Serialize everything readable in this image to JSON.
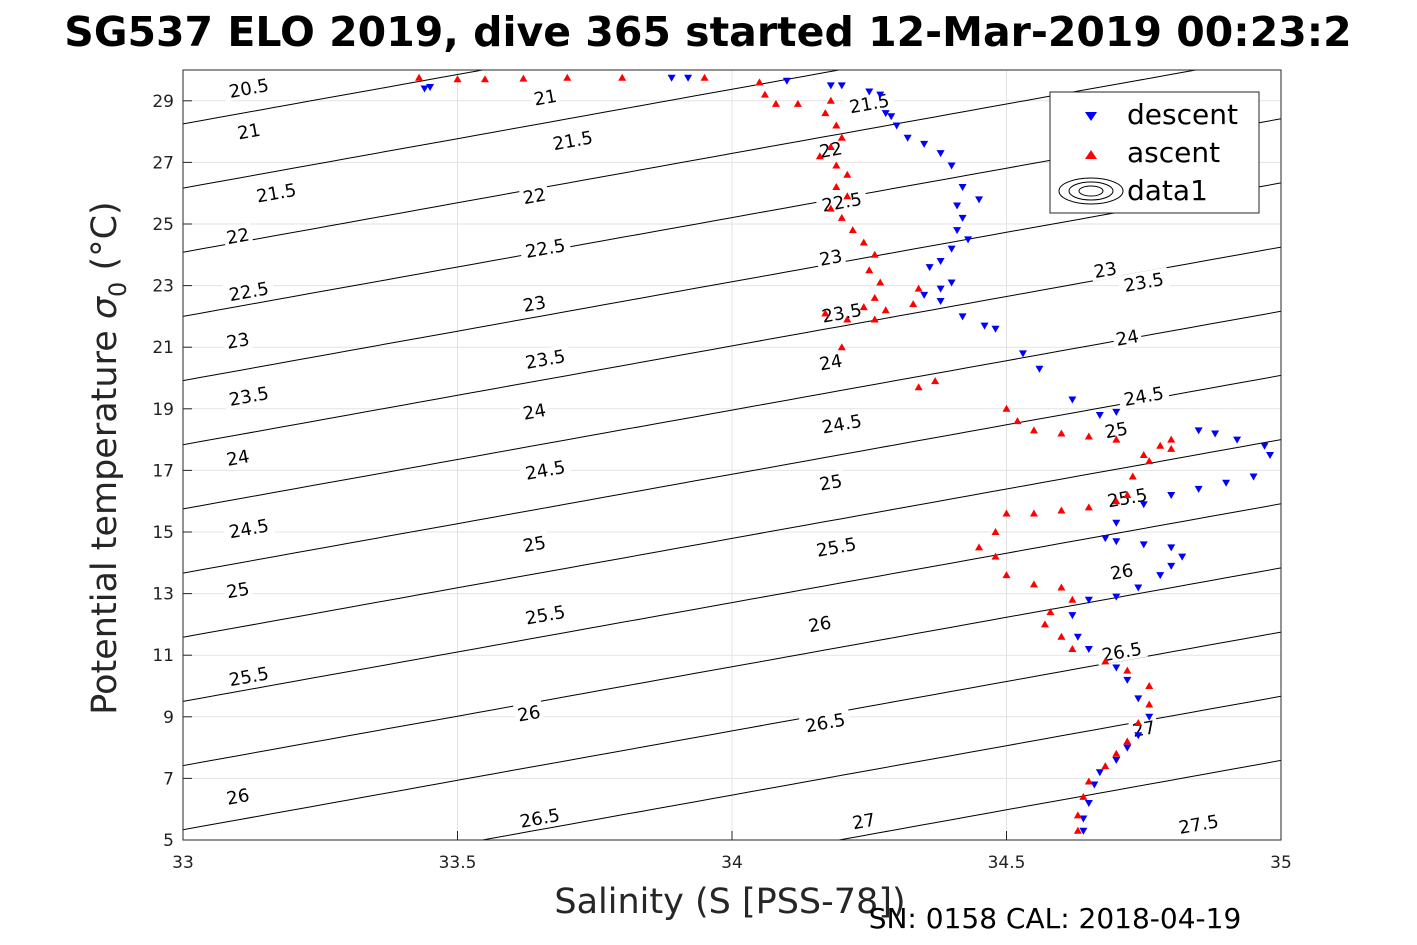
{
  "title": "SG537 ELO 2019, dive 365 started 12-Mar-2019 00:23:2",
  "footer": "SN: 0158  CAL: 2018-04-19",
  "chart_data": {
    "type": "scatter",
    "xlabel": "Salinity (S [PSS-78])",
    "ylabel_main": "Potential temperature ",
    "ylabel_sym": "σ",
    "ylabel_sub": "0",
    "ylabel_unit": " (°C)",
    "xlim": [
      33,
      35
    ],
    "ylim": [
      5,
      30
    ],
    "xticks": [
      33,
      33.5,
      34,
      34.5,
      35
    ],
    "xtick_labels": [
      "33",
      "33.5",
      "34",
      "34.5",
      "35"
    ],
    "yticks": [
      5,
      7,
      9,
      11,
      13,
      15,
      17,
      19,
      21,
      23,
      25,
      27,
      29
    ],
    "ytick_labels": [
      "5",
      "7",
      "9",
      "11",
      "13",
      "15",
      "17",
      "19",
      "21",
      "23",
      "25",
      "27",
      "29"
    ],
    "grid": true,
    "legend_position": "top-right",
    "legend": [
      "descent",
      "ascent",
      "data1"
    ],
    "contour_levels": [
      20.5,
      21,
      21.5,
      22,
      22.5,
      23,
      23.5,
      24,
      24.5,
      25,
      25.5,
      26,
      26.5,
      27,
      27.5
    ],
    "contour_labels": [
      {
        "text": "20.5",
        "x": 33.12,
        "y": 29.4
      },
      {
        "text": "21",
        "x": 33.12,
        "y": 28.0
      },
      {
        "text": "21.5",
        "x": 33.17,
        "y": 26.0
      },
      {
        "text": "22",
        "x": 33.1,
        "y": 24.6
      },
      {
        "text": "22.5",
        "x": 33.12,
        "y": 22.8
      },
      {
        "text": "23",
        "x": 33.1,
        "y": 21.2
      },
      {
        "text": "23.5",
        "x": 33.12,
        "y": 19.4
      },
      {
        "text": "24",
        "x": 33.1,
        "y": 17.4
      },
      {
        "text": "24.5",
        "x": 33.12,
        "y": 15.1
      },
      {
        "text": "25",
        "x": 33.1,
        "y": 13.1
      },
      {
        "text": "25.5",
        "x": 33.12,
        "y": 10.3
      },
      {
        "text": "26",
        "x": 33.1,
        "y": 6.4
      },
      {
        "text": "21",
        "x": 33.66,
        "y": 29.1
      },
      {
        "text": "21.5",
        "x": 33.71,
        "y": 27.7
      },
      {
        "text": "22",
        "x": 33.64,
        "y": 25.9
      },
      {
        "text": "22.5",
        "x": 33.66,
        "y": 24.2
      },
      {
        "text": "23",
        "x": 33.64,
        "y": 22.4
      },
      {
        "text": "23.5",
        "x": 33.66,
        "y": 20.6
      },
      {
        "text": "24",
        "x": 33.64,
        "y": 18.9
      },
      {
        "text": "24.5",
        "x": 33.66,
        "y": 17.0
      },
      {
        "text": "25",
        "x": 33.64,
        "y": 14.6
      },
      {
        "text": "25.5",
        "x": 33.66,
        "y": 12.3
      },
      {
        "text": "26",
        "x": 33.63,
        "y": 9.1
      },
      {
        "text": "26.5",
        "x": 33.65,
        "y": 5.7
      },
      {
        "text": "21.5",
        "x": 34.25,
        "y": 28.9
      },
      {
        "text": "22",
        "x": 34.18,
        "y": 27.4
      },
      {
        "text": "22.5",
        "x": 34.2,
        "y": 25.7
      },
      {
        "text": "23",
        "x": 34.18,
        "y": 23.9
      },
      {
        "text": "23.5",
        "x": 34.2,
        "y": 22.1
      },
      {
        "text": "24",
        "x": 34.18,
        "y": 20.5
      },
      {
        "text": "24.5",
        "x": 34.2,
        "y": 18.5
      },
      {
        "text": "25",
        "x": 34.18,
        "y": 16.6
      },
      {
        "text": "25.5",
        "x": 34.19,
        "y": 14.5
      },
      {
        "text": "26",
        "x": 34.16,
        "y": 12.0
      },
      {
        "text": "26.5",
        "x": 34.17,
        "y": 8.8
      },
      {
        "text": "27",
        "x": 34.24,
        "y": 5.6
      },
      {
        "text": "23",
        "x": 34.68,
        "y": 23.5
      },
      {
        "text": "23.5",
        "x": 34.75,
        "y": 23.1
      },
      {
        "text": "24",
        "x": 34.72,
        "y": 21.3
      },
      {
        "text": "24.5",
        "x": 34.75,
        "y": 19.4
      },
      {
        "text": "25",
        "x": 34.7,
        "y": 18.3
      },
      {
        "text": "25.5",
        "x": 34.72,
        "y": 16.1
      },
      {
        "text": "26",
        "x": 34.71,
        "y": 13.7
      },
      {
        "text": "26.5",
        "x": 34.71,
        "y": 11.1
      },
      {
        "text": "27",
        "x": 34.75,
        "y": 8.6
      },
      {
        "text": "27.5",
        "x": 34.85,
        "y": 5.5
      }
    ],
    "series": [
      {
        "name": "descent",
        "marker": "triangle-down",
        "color": "#0000ff",
        "points": [
          [
            33.44,
            29.4
          ],
          [
            33.45,
            29.45
          ],
          [
            33.89,
            29.75
          ],
          [
            33.92,
            29.75
          ],
          [
            34.1,
            29.65
          ],
          [
            34.18,
            29.5
          ],
          [
            34.2,
            29.5
          ],
          [
            34.25,
            29.3
          ],
          [
            34.27,
            29.2
          ],
          [
            34.28,
            28.6
          ],
          [
            34.29,
            28.5
          ],
          [
            34.3,
            28.2
          ],
          [
            34.32,
            27.8
          ],
          [
            34.35,
            27.6
          ],
          [
            34.38,
            27.3
          ],
          [
            34.4,
            26.9
          ],
          [
            34.42,
            26.2
          ],
          [
            34.41,
            25.6
          ],
          [
            34.42,
            25.2
          ],
          [
            34.45,
            25.8
          ],
          [
            34.41,
            24.8
          ],
          [
            34.43,
            24.5
          ],
          [
            34.4,
            24.2
          ],
          [
            34.36,
            23.6
          ],
          [
            34.38,
            23.8
          ],
          [
            34.4,
            23.1
          ],
          [
            34.38,
            22.9
          ],
          [
            34.35,
            22.7
          ],
          [
            34.38,
            22.5
          ],
          [
            34.42,
            22.0
          ],
          [
            34.46,
            21.7
          ],
          [
            34.48,
            21.6
          ],
          [
            34.53,
            20.8
          ],
          [
            34.56,
            20.3
          ],
          [
            34.62,
            19.3
          ],
          [
            34.67,
            18.8
          ],
          [
            34.7,
            18.9
          ],
          [
            34.85,
            18.3
          ],
          [
            34.88,
            18.2
          ],
          [
            34.92,
            18.0
          ],
          [
            34.97,
            17.8
          ],
          [
            34.98,
            17.5
          ],
          [
            34.95,
            16.8
          ],
          [
            34.9,
            16.6
          ],
          [
            34.85,
            16.4
          ],
          [
            34.8,
            16.2
          ],
          [
            34.75,
            15.9
          ],
          [
            34.7,
            15.3
          ],
          [
            34.68,
            14.8
          ],
          [
            34.7,
            14.7
          ],
          [
            34.75,
            14.6
          ],
          [
            34.8,
            14.5
          ],
          [
            34.82,
            14.2
          ],
          [
            34.8,
            13.9
          ],
          [
            34.78,
            13.6
          ],
          [
            34.74,
            13.2
          ],
          [
            34.7,
            12.9
          ],
          [
            34.65,
            12.8
          ],
          [
            34.62,
            12.3
          ],
          [
            34.63,
            11.6
          ],
          [
            34.65,
            11.2
          ],
          [
            34.7,
            10.6
          ],
          [
            34.72,
            10.2
          ],
          [
            34.74,
            9.6
          ],
          [
            34.76,
            9.0
          ],
          [
            34.74,
            8.4
          ],
          [
            34.72,
            8.0
          ],
          [
            34.7,
            7.6
          ],
          [
            34.67,
            7.2
          ],
          [
            34.66,
            6.8
          ],
          [
            34.65,
            6.2
          ],
          [
            34.64,
            5.7
          ],
          [
            34.64,
            5.3
          ]
        ]
      },
      {
        "name": "ascent",
        "marker": "triangle-up",
        "color": "#ff0000",
        "points": [
          [
            33.43,
            29.75
          ],
          [
            33.5,
            29.7
          ],
          [
            33.55,
            29.7
          ],
          [
            33.62,
            29.72
          ],
          [
            33.7,
            29.75
          ],
          [
            33.8,
            29.75
          ],
          [
            33.95,
            29.75
          ],
          [
            34.05,
            29.6
          ],
          [
            34.06,
            29.2
          ],
          [
            34.08,
            28.9
          ],
          [
            34.12,
            28.9
          ],
          [
            34.18,
            29.0
          ],
          [
            34.17,
            28.6
          ],
          [
            34.19,
            28.2
          ],
          [
            34.2,
            27.8
          ],
          [
            34.18,
            27.5
          ],
          [
            34.16,
            27.2
          ],
          [
            34.19,
            26.9
          ],
          [
            34.21,
            26.6
          ],
          [
            34.19,
            26.2
          ],
          [
            34.21,
            25.9
          ],
          [
            34.18,
            25.5
          ],
          [
            34.2,
            25.2
          ],
          [
            34.22,
            24.8
          ],
          [
            34.24,
            24.4
          ],
          [
            34.26,
            24.0
          ],
          [
            34.25,
            23.5
          ],
          [
            34.27,
            23.1
          ],
          [
            34.26,
            22.6
          ],
          [
            34.24,
            22.3
          ],
          [
            34.28,
            22.2
          ],
          [
            34.33,
            22.4
          ],
          [
            34.34,
            22.9
          ],
          [
            34.26,
            21.9
          ],
          [
            34.21,
            21.9
          ],
          [
            34.17,
            22.1
          ],
          [
            34.2,
            21.0
          ],
          [
            34.34,
            19.7
          ],
          [
            34.37,
            19.9
          ],
          [
            34.5,
            19.0
          ],
          [
            34.52,
            18.6
          ],
          [
            34.55,
            18.3
          ],
          [
            34.6,
            18.2
          ],
          [
            34.65,
            18.1
          ],
          [
            34.7,
            18.0
          ],
          [
            34.75,
            17.5
          ],
          [
            34.78,
            17.8
          ],
          [
            34.8,
            18.0
          ],
          [
            34.8,
            17.7
          ],
          [
            34.76,
            17.3
          ],
          [
            34.73,
            16.8
          ],
          [
            34.72,
            16.2
          ],
          [
            34.7,
            16.0
          ],
          [
            34.65,
            15.8
          ],
          [
            34.6,
            15.7
          ],
          [
            34.55,
            15.6
          ],
          [
            34.5,
            15.6
          ],
          [
            34.48,
            15.0
          ],
          [
            34.45,
            14.5
          ],
          [
            34.48,
            14.2
          ],
          [
            34.5,
            13.6
          ],
          [
            34.55,
            13.3
          ],
          [
            34.6,
            13.2
          ],
          [
            34.62,
            12.8
          ],
          [
            34.58,
            12.4
          ],
          [
            34.57,
            12.0
          ],
          [
            34.6,
            11.6
          ],
          [
            34.62,
            11.2
          ],
          [
            34.68,
            10.8
          ],
          [
            34.72,
            10.5
          ],
          [
            34.76,
            10.0
          ],
          [
            34.76,
            9.4
          ],
          [
            34.74,
            8.8
          ],
          [
            34.72,
            8.2
          ],
          [
            34.7,
            7.8
          ],
          [
            34.68,
            7.4
          ],
          [
            34.65,
            6.9
          ],
          [
            34.64,
            6.4
          ],
          [
            34.63,
            5.8
          ],
          [
            34.63,
            5.3
          ]
        ]
      }
    ]
  }
}
